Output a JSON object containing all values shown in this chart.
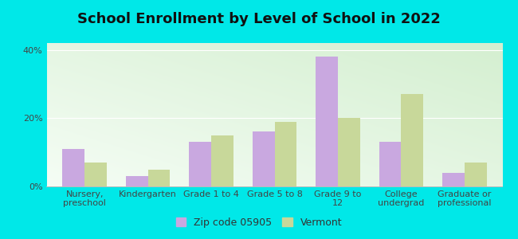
{
  "title": "School Enrollment by Level of School in 2022",
  "categories": [
    "Nursery,\npreschool",
    "Kindergarten",
    "Grade 1 to 4",
    "Grade 5 to 8",
    "Grade 9 to\n12",
    "College\nundergrad",
    "Graduate or\nprofessional"
  ],
  "zip_values": [
    11,
    3,
    13,
    16,
    38,
    13,
    4
  ],
  "vt_values": [
    7,
    5,
    15,
    19,
    20,
    27,
    7
  ],
  "zip_color": "#c9a8e0",
  "vt_color": "#c8d89a",
  "background_outer": "#00e8e8",
  "bg_top_left": "#f5fdf5",
  "bg_bottom_right": "#d4efd0",
  "ylabel_ticks": [
    "0%",
    "20%",
    "40%"
  ],
  "ytick_vals": [
    0,
    20,
    40
  ],
  "ylim": [
    0,
    42
  ],
  "bar_width": 0.35,
  "zip_label": "Zip code 05905",
  "vt_label": "Vermont",
  "title_fontsize": 13,
  "tick_fontsize": 8,
  "legend_fontsize": 9
}
